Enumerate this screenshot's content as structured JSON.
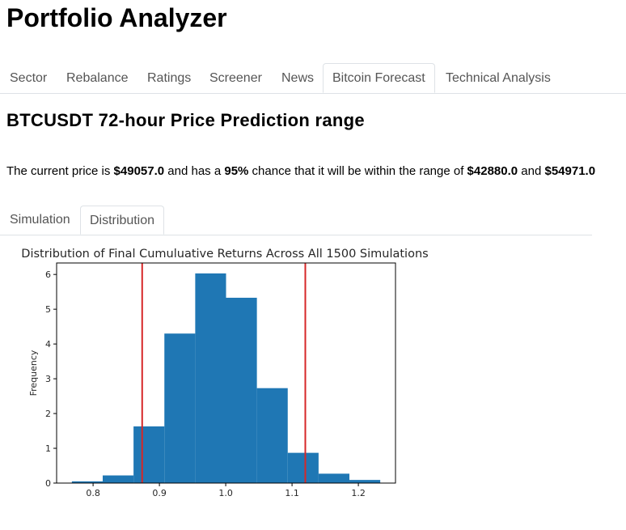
{
  "app": {
    "title": "Portfolio Analyzer"
  },
  "main_tabs": [
    {
      "label": "Sector"
    },
    {
      "label": "Rebalance"
    },
    {
      "label": "Ratings"
    },
    {
      "label": "Screener"
    },
    {
      "label": "News"
    },
    {
      "label": "Bitcoin Forecast",
      "active": true
    },
    {
      "label": "Technical Analysis"
    }
  ],
  "forecast": {
    "heading": "BTCUSDT 72-hour Price Prediction range",
    "summary": {
      "t1": "The current price is ",
      "current_price": "$49057.0",
      "t2": " and has a ",
      "confidence": "95%",
      "t3": " chance that it will be within the range of ",
      "lower": "$42880.0",
      "t4": " and ",
      "upper": "$54971.0"
    },
    "sub_tabs": [
      {
        "label": "Simulation"
      },
      {
        "label": "Distribution",
        "active": true
      }
    ]
  },
  "chart_data": {
    "type": "bar",
    "title": "Distribution of Final Cumuluative Returns Across All 1500 Simulations",
    "xlabel": "",
    "ylabel": "Frequency",
    "bin_edges": [
      0.768,
      0.8145,
      0.861,
      0.9075,
      0.954,
      1.0005,
      1.047,
      1.0935,
      1.14,
      1.1865,
      1.233
    ],
    "values": [
      0.05,
      0.22,
      1.63,
      4.3,
      6.03,
      5.33,
      2.73,
      0.87,
      0.27,
      0.09
    ],
    "xlim": [
      0.745,
      1.256
    ],
    "ylim": [
      0,
      6.33
    ],
    "xticks": [
      0.8,
      0.9,
      1.0,
      1.1,
      1.2
    ],
    "xtick_labels": [
      "0.8",
      "0.9",
      "1.0",
      "1.1",
      "1.2"
    ],
    "yticks": [
      0,
      1,
      2,
      3,
      4,
      5,
      6
    ],
    "ytick_labels": [
      "0",
      "1",
      "2",
      "3",
      "4",
      "5",
      "6"
    ],
    "vlines": [
      0.874,
      1.12
    ],
    "bar_color": "#1f77b4",
    "vline_color": "#d62728",
    "grid": false
  }
}
